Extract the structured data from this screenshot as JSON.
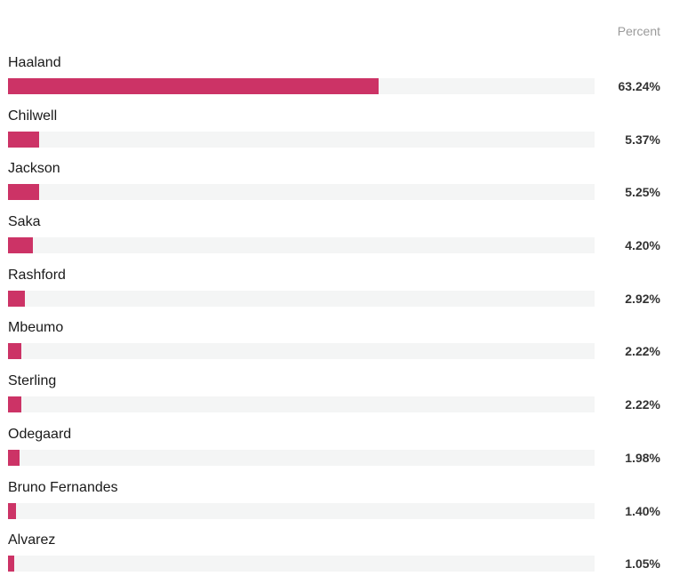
{
  "header": {
    "column_label": "Percent"
  },
  "colors": {
    "bar": "#cc3366",
    "track": "#f4f5f5"
  },
  "chart_data": {
    "type": "bar",
    "orientation": "horizontal",
    "title": "",
    "xlabel": "",
    "ylabel": "",
    "xlim": [
      0,
      100
    ],
    "value_header": "Percent",
    "categories": [
      "Haaland",
      "Chilwell",
      "Jackson",
      "Saka",
      "Rashford",
      "Mbeumo",
      "Sterling",
      "Odegaard",
      "Bruno Fernandes",
      "Alvarez"
    ],
    "values": [
      63.24,
      5.37,
      5.25,
      4.2,
      2.92,
      2.22,
      2.22,
      1.98,
      1.4,
      1.05
    ],
    "labels": [
      "63.24%",
      "5.37%",
      "5.25%",
      "4.20%",
      "2.92%",
      "2.22%",
      "2.22%",
      "1.98%",
      "1.40%",
      "1.05%"
    ]
  }
}
